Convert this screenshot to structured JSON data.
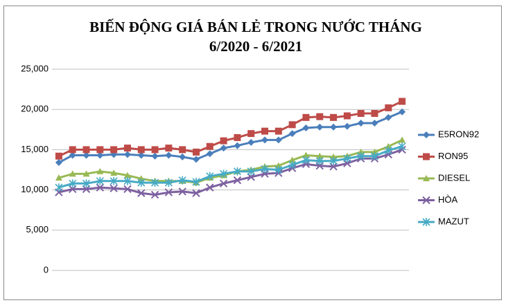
{
  "chart_data": {
    "type": "line",
    "title": "BIẾN ĐỘNG GIÁ BÁN LẺ TRONG NƯỚC THÁNG",
    "subtitle": "6/2020 - 6/2021",
    "categories": [
      null,
      null,
      null,
      null,
      null,
      null,
      null,
      null,
      null,
      null,
      null,
      null,
      null,
      null,
      null,
      null,
      null,
      null,
      null,
      null,
      null,
      null,
      null,
      null,
      null,
      null
    ],
    "ylim": [
      0,
      25000
    ],
    "yticks": [
      0,
      {
        "value": 5000,
        "label": "5,000"
      },
      {
        "value": 10000,
        "label": "10,000"
      },
      {
        "value": 15000,
        "label": "15,000"
      },
      {
        "value": 20000,
        "label": "20,000"
      },
      {
        "value": 25000,
        "label": "25,000"
      }
    ],
    "grid": true,
    "legend": "right",
    "series": [
      {
        "name": "E5RON92",
        "color": "#4a7ebb",
        "marker": "diamond",
        "values": [
          13400,
          14300,
          14300,
          14300,
          14400,
          14400,
          14300,
          14200,
          14300,
          14100,
          13800,
          14500,
          15200,
          15500,
          15900,
          16200,
          16200,
          17000,
          17700,
          17800,
          17800,
          17900,
          18300,
          18300,
          19000,
          19700
        ]
      },
      {
        "name": "RON95",
        "color": "#be4b48",
        "marker": "square",
        "values": [
          14200,
          15000,
          15000,
          15000,
          15000,
          15200,
          15000,
          15000,
          15200,
          15000,
          14700,
          15400,
          16100,
          16500,
          17000,
          17300,
          17300,
          18100,
          19000,
          19100,
          19000,
          19200,
          19500,
          19500,
          20200,
          21000
        ]
      },
      {
        "name": "DIESEL",
        "color": "#98b954",
        "marker": "triangle",
        "values": [
          11500,
          12000,
          12000,
          12300,
          12100,
          11800,
          11400,
          11100,
          11100,
          11100,
          10900,
          11500,
          11800,
          12300,
          12500,
          12900,
          13000,
          13700,
          14300,
          14200,
          14100,
          14200,
          14700,
          14700,
          15400,
          16200
        ]
      },
      {
        "name": "HÒA",
        "color": "#7d60a0",
        "marker": "x",
        "values": [
          9700,
          10100,
          10100,
          10300,
          10200,
          10100,
          9600,
          9400,
          9700,
          9800,
          9600,
          10300,
          10800,
          11200,
          11600,
          12000,
          12100,
          12700,
          13200,
          13000,
          12900,
          13300,
          13900,
          13900,
          14400,
          15000
        ]
      },
      {
        "name": "MAZUT",
        "color": "#46aac5",
        "marker": "star",
        "values": [
          10300,
          10800,
          10800,
          11100,
          11100,
          11100,
          10900,
          10900,
          10900,
          11200,
          11000,
          11700,
          12000,
          12300,
          12300,
          12600,
          12500,
          13100,
          13700,
          13600,
          13600,
          13900,
          14200,
          14200,
          14900,
          15400
        ]
      }
    ]
  }
}
